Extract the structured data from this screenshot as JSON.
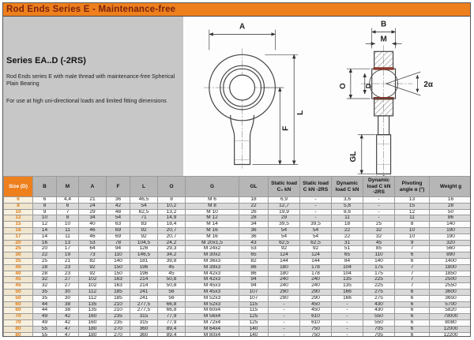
{
  "page": {
    "title": "Rod Ends Series E - Maintenance-free",
    "series_heading": "Series EA..D (-2RS)",
    "description1": "Rod Ends series E with male thread with maintenance-free Spherical Plain Bearing",
    "description2": "For use at high uni-directional loads and limited fitting dimensions"
  },
  "colors": {
    "accent_orange": "#ee7f1d",
    "title_text": "#7a2410",
    "panel_gray": "#c7c7c7",
    "row_stripe": "#d9d9d9",
    "seal_red": "#8b3a2a"
  },
  "diagram": {
    "front_view": {
      "labels": {
        "A": "A",
        "L": "L",
        "F": "F"
      }
    },
    "side_view": {
      "labels": {
        "B": "B",
        "M": "M",
        "O": "O",
        "D": "D",
        "angle": "2α",
        "GL": "GL",
        "G": "G"
      }
    }
  },
  "table": {
    "headers": [
      "Size (D)",
      "B",
      "M",
      "A",
      "F",
      "L",
      "O",
      "G",
      "GL",
      "Static load C₀ kN",
      "Static load C kN -2RS",
      "Dynamic load C kN",
      "Dynamic load C kN -2RS",
      "Pivoting angle α (°)",
      "Weight g"
    ],
    "rows": [
      [
        "6",
        "6",
        "4,4",
        "21",
        "36",
        "46,5",
        "8",
        "M 6",
        "18",
        "6,9",
        "-",
        "3,6",
        "-",
        "13",
        "16"
      ],
      [
        "8",
        "8",
        "6",
        "24",
        "42",
        "54",
        "10,2",
        "M 8",
        "22",
        "12,7",
        "-",
        "5,8",
        "-",
        "15",
        "28"
      ],
      [
        "10",
        "9",
        "7",
        "29",
        "48",
        "62,5",
        "13,2",
        "M 10",
        "26",
        "19,9",
        "-",
        "8,6",
        "-",
        "12",
        "50"
      ],
      [
        "12",
        "10",
        "8",
        "34",
        "54",
        "71",
        "14,9",
        "M 12",
        "28",
        "29",
        "-",
        "11",
        "-",
        "11",
        "86"
      ],
      [
        "15",
        "12",
        "10",
        "40",
        "63",
        "83",
        "18,4",
        "M 14",
        "34",
        "39,5",
        "39,5",
        "18",
        "25",
        "8",
        "140"
      ],
      [
        "16",
        "14",
        "11",
        "46",
        "69",
        "92",
        "20,7",
        "M 16",
        "36",
        "54",
        "54",
        "22",
        "32",
        "10",
        "190"
      ],
      [
        "17",
        "14",
        "11",
        "46",
        "69",
        "92",
        "20,7",
        "M 16",
        "36",
        "54",
        "54",
        "22",
        "32",
        "10",
        "190"
      ],
      [
        "20",
        "16",
        "13",
        "53",
        "78",
        "104,5",
        "24,2",
        "M 20x1,5",
        "43",
        "62,5",
        "62,5",
        "31",
        "45",
        "9",
        "320"
      ],
      [
        "25",
        "20",
        "17",
        "64",
        "94",
        "126",
        "29,3",
        "M 24x2",
        "53",
        "92",
        "92",
        "51",
        "85",
        "7",
        "560"
      ],
      [
        "30",
        "22",
        "19",
        "73",
        "110",
        "146,5",
        "34,2",
        "M 30x2",
        "65",
        "124",
        "124",
        "65",
        "110",
        "6",
        "890"
      ],
      [
        "35",
        "25",
        "21",
        "82",
        "140",
        "181",
        "39,8",
        "M 36x3",
        "82",
        "144",
        "144",
        "84",
        "140",
        "6",
        "1400"
      ],
      [
        "40",
        "28",
        "23",
        "92",
        "150",
        "196",
        "45",
        "M 39x3",
        "86",
        "180",
        "178",
        "104",
        "175",
        "7",
        "1800"
      ],
      [
        "40",
        "28",
        "23",
        "92",
        "150",
        "196",
        "45",
        "M 42x3",
        "86",
        "180",
        "178",
        "104",
        "175",
        "7",
        "1850"
      ],
      [
        "45",
        "32",
        "27",
        "102",
        "163",
        "214",
        "50,8",
        "M 42x3",
        "94",
        "240",
        "240",
        "135",
        "225",
        "7",
        "2500"
      ],
      [
        "45",
        "32",
        "27",
        "102",
        "163",
        "214",
        "50,8",
        "M 45x3",
        "94",
        "240",
        "240",
        "135",
        "225",
        "7",
        "2550"
      ],
      [
        "50",
        "35",
        "30",
        "112",
        "185",
        "241",
        "56",
        "M 45x3",
        "107",
        "290",
        "290",
        "166",
        "275",
        "6",
        "3600"
      ],
      [
        "50",
        "35",
        "30",
        "112",
        "185",
        "241",
        "56",
        "M 52x3",
        "107",
        "290",
        "290",
        "166",
        "275",
        "6",
        "3650"
      ],
      [
        "60",
        "44",
        "38",
        "135",
        "210",
        "277,5",
        "66,8",
        "M 52x3",
        "115",
        "-",
        "450",
        "-",
        "430",
        "6",
        "5700"
      ],
      [
        "60",
        "44",
        "38",
        "135",
        "210",
        "277,5",
        "66,8",
        "M 60x4",
        "115",
        "-",
        "450",
        "-",
        "430",
        "6",
        "5820"
      ],
      [
        "70",
        "49",
        "42",
        "160",
        "235",
        "315",
        "77,9",
        "M 56x4",
        "125",
        "-",
        "610",
        "-",
        "550",
        "6",
        "79000"
      ],
      [
        "70",
        "49",
        "42",
        "160",
        "235",
        "315",
        "77,9",
        "M 72x4",
        "125",
        "-",
        "610",
        "-",
        "550",
        "6",
        "8080"
      ],
      [
        "80",
        "55",
        "47",
        "180",
        "270",
        "360",
        "89,4",
        "M 64x4",
        "140",
        "-",
        "750",
        "-",
        "705",
        "6",
        "12000"
      ],
      [
        "80",
        "55",
        "47",
        "180",
        "270",
        "360",
        "89,4",
        "M 80x4",
        "140",
        "-",
        "750",
        "-",
        "705",
        "6",
        "12200"
      ]
    ]
  }
}
